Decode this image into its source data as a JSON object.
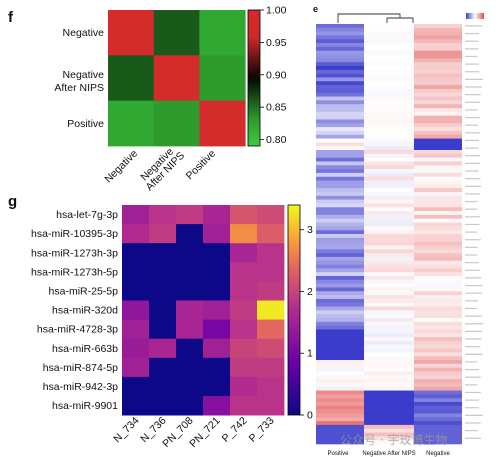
{
  "chart_data": [
    {
      "panel": "f",
      "type": "heatmap",
      "rows": [
        "Negative",
        "Negative After NIPS",
        "Positive"
      ],
      "columns": [
        "Negative",
        "Negative After NIPS",
        "Positive"
      ],
      "values": [
        [
          1.0,
          0.86,
          0.82
        ],
        [
          0.86,
          1.0,
          0.83
        ],
        [
          0.82,
          0.83,
          1.0
        ]
      ],
      "colorbar": {
        "ticks": [
          "1.00",
          "0.95",
          "0.90",
          "0.85",
          "0.80"
        ],
        "range": [
          0.79,
          1.0
        ]
      },
      "colors": {
        "high": "#d42b2b",
        "mid": "#000000",
        "low": "#3dcc3d"
      }
    },
    {
      "panel": "g",
      "type": "heatmap",
      "rows": [
        "hsa-let-7g-3p",
        "hsa-miR-10395-3p",
        "hsa-miR-1273h-3p",
        "hsa-miR-1273h-5p",
        "hsa-miR-25-5p",
        "hsa-miR-320d",
        "hsa-miR-4728-3p",
        "hsa-miR-663b",
        "hsa-miR-874-5p",
        "hsa-miR-942-3p",
        "hsa-miR-9901"
      ],
      "columns": [
        "N_734",
        "N_736",
        "PN_708",
        "PN_721",
        "P_742",
        "P_733"
      ],
      "values": [
        [
          1.5,
          1.8,
          1.9,
          1.6,
          2.2,
          2.1
        ],
        [
          1.7,
          1.9,
          0,
          1.5,
          2.7,
          2.3
        ],
        [
          0,
          0,
          0,
          0,
          1.6,
          1.8
        ],
        [
          0,
          0,
          0,
          0,
          1.8,
          1.8
        ],
        [
          0,
          0,
          0,
          0,
          1.8,
          1.9
        ],
        [
          1.3,
          0,
          1.6,
          1.5,
          1.9,
          3.3
        ],
        [
          1.5,
          0,
          1.6,
          1.0,
          1.8,
          2.4
        ],
        [
          1.4,
          1.6,
          0,
          1.5,
          2.0,
          2.1
        ],
        [
          1.5,
          0,
          0,
          0,
          1.9,
          1.9
        ],
        [
          0,
          0,
          0,
          0,
          1.7,
          1.8
        ],
        [
          0,
          0,
          0,
          1.2,
          1.8,
          1.8
        ]
      ],
      "colorbar": {
        "ticks": [
          "3",
          "2",
          "1",
          "0"
        ],
        "range": [
          0,
          3.4
        ]
      },
      "colors": [
        "#0d0887",
        "#7e03a8",
        "#cc4778",
        "#f89540",
        "#f0f921"
      ]
    },
    {
      "panel": "e",
      "type": "heatmap",
      "columns": [
        "Positive",
        "Negative After NIPS",
        "Negative"
      ],
      "legend_colors": [
        "#3b3bcc",
        "#ffffff",
        "#e34a4a"
      ],
      "n_rows": 110
    }
  ],
  "panel_letters": {
    "f": "f",
    "g": "g",
    "e": "e"
  },
  "watermark": "公众号 · 宇玫博生物"
}
